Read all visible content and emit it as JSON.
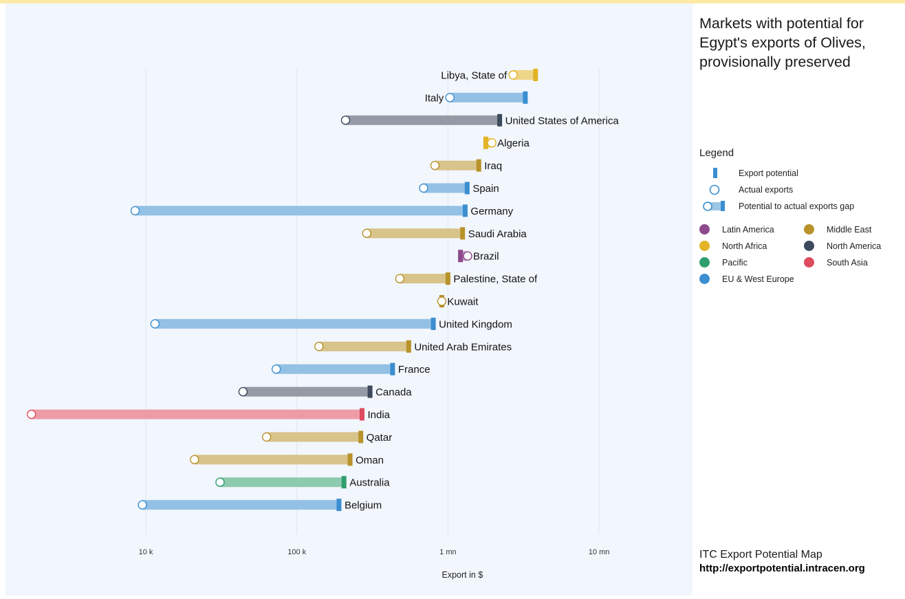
{
  "sidebar": {
    "title_lines": [
      "Markets with potential for",
      "Egypt's exports of Olives,",
      "provisionally preserved"
    ]
  },
  "legend": {
    "title": "Legend",
    "items": {
      "export_potential": "Export potential",
      "actual_exports": "Actual exports",
      "gap": "Potential to actual exports gap"
    },
    "regions": [
      {
        "name": "Latin America",
        "color": "#8e4a8c"
      },
      {
        "name": "Middle East",
        "color": "#b8922a"
      },
      {
        "name": "North Africa",
        "color": "#e2b324"
      },
      {
        "name": "North America",
        "color": "#3c4a5c"
      },
      {
        "name": "Pacific",
        "color": "#2f9e6e"
      },
      {
        "name": "South Asia",
        "color": "#de4b5f"
      },
      {
        "name": "EU & West Europe",
        "color": "#3b8ed0"
      }
    ]
  },
  "footer": {
    "source": "ITC Export Potential Map",
    "url": "http://exportpotential.intracen.org"
  },
  "chart_data": {
    "type": "dumbbell",
    "xlabel": "Export in $",
    "xscale": "log",
    "xlim": [
      1700,
      40000000
    ],
    "xticks": [
      {
        "value": 10000,
        "label": "10 k"
      },
      {
        "value": 100000,
        "label": "100 k"
      },
      {
        "value": 1000000,
        "label": "1 mn"
      },
      {
        "value": 10000000,
        "label": "10 mn"
      }
    ],
    "series_fields": [
      "market",
      "region",
      "actual_exports",
      "export_potential"
    ],
    "markets": [
      {
        "market": "Libya, State of",
        "region": "North Africa",
        "actual": 2700000,
        "potential": 3800000
      },
      {
        "market": "Italy",
        "region": "EU & West Europe",
        "actual": 1030000,
        "potential": 3250000
      },
      {
        "market": "United States of America",
        "region": "North America",
        "actual": 210000,
        "potential": 2200000
      },
      {
        "market": "Algeria",
        "region": "North Africa",
        "actual": 1950000,
        "potential": 1780000
      },
      {
        "market": "Iraq",
        "region": "Middle East",
        "actual": 820000,
        "potential": 1600000
      },
      {
        "market": "Spain",
        "region": "EU & West Europe",
        "actual": 690000,
        "potential": 1340000
      },
      {
        "market": "Germany",
        "region": "EU & West Europe",
        "actual": 8500,
        "potential": 1300000
      },
      {
        "market": "Saudi Arabia",
        "region": "Middle East",
        "actual": 290000,
        "potential": 1250000
      },
      {
        "market": "Brazil",
        "region": "Latin America",
        "actual": 1350000,
        "potential": 1210000
      },
      {
        "market": "Palestine, State of",
        "region": "Middle East",
        "actual": 480000,
        "potential": 1000000
      },
      {
        "market": "Kuwait",
        "region": "Middle East",
        "actual": 910000,
        "potential": 910000
      },
      {
        "market": "United Kingdom",
        "region": "EU & West Europe",
        "actual": 11500,
        "potential": 800000
      },
      {
        "market": "United Arab Emirates",
        "region": "Middle East",
        "actual": 140000,
        "potential": 550000
      },
      {
        "market": "France",
        "region": "EU & West Europe",
        "actual": 73000,
        "potential": 430000
      },
      {
        "market": "Canada",
        "region": "North America",
        "actual": 44000,
        "potential": 305000
      },
      {
        "market": "India",
        "region": "South Asia",
        "actual": 1750,
        "potential": 270000
      },
      {
        "market": "Qatar",
        "region": "Middle East",
        "actual": 63000,
        "potential": 265000
      },
      {
        "market": "Oman",
        "region": "Middle East",
        "actual": 21000,
        "potential": 225000
      },
      {
        "market": "Australia",
        "region": "Pacific",
        "actual": 31000,
        "potential": 205000
      },
      {
        "market": "Belgium",
        "region": "EU & West Europe",
        "actual": 9500,
        "potential": 190000
      }
    ]
  }
}
